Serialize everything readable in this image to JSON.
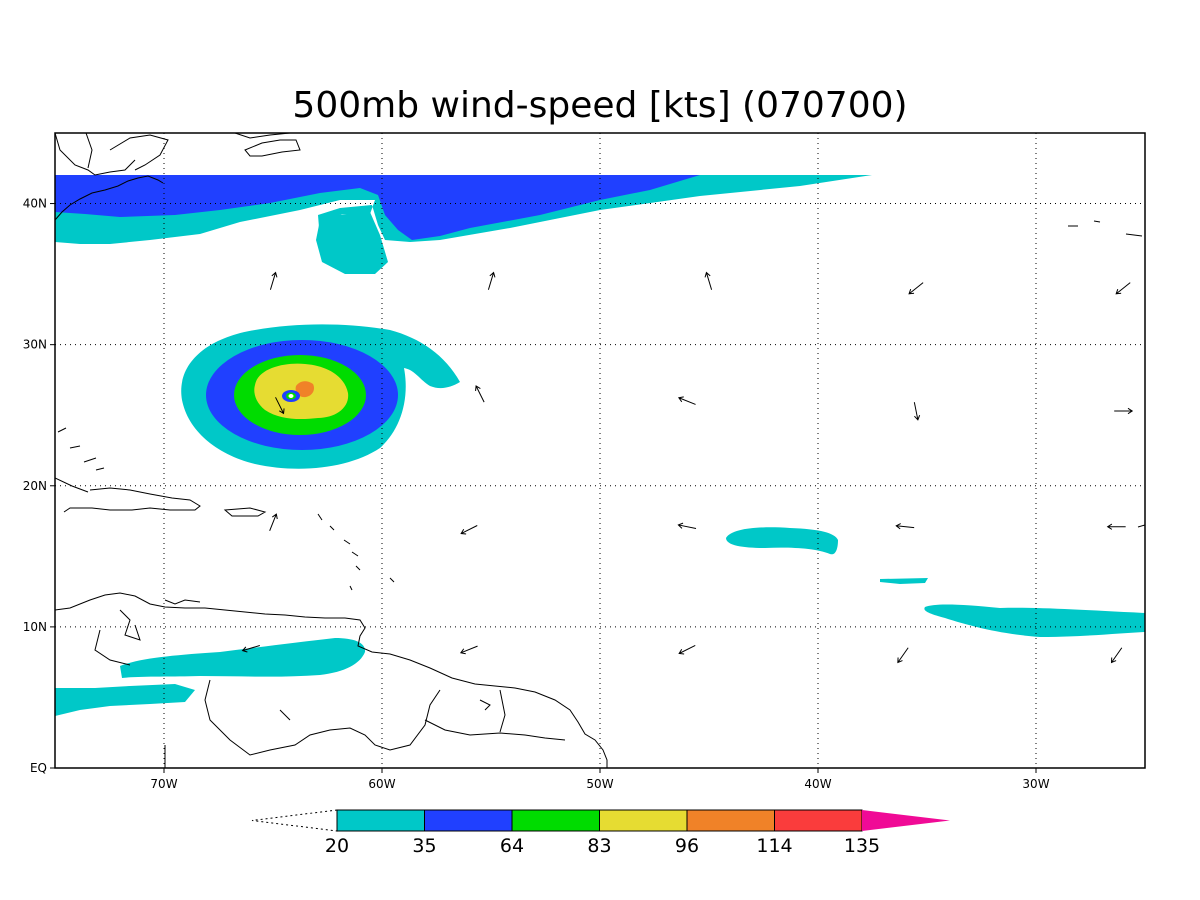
{
  "title": "500mb wind-speed [kts] (070700)",
  "map": {
    "lon_range": [
      -75,
      -25
    ],
    "lat_range": [
      0,
      45
    ],
    "lon_ticks": [
      {
        "lon": -70,
        "label": "70W"
      },
      {
        "lon": -60,
        "label": "60W"
      },
      {
        "lon": -50,
        "label": "50W"
      },
      {
        "lon": -40,
        "label": "40W"
      },
      {
        "lon": -30,
        "label": "30W"
      }
    ],
    "lat_ticks": [
      {
        "lat": 0,
        "label": "EQ"
      },
      {
        "lat": 10,
        "label": "10N"
      },
      {
        "lat": 20,
        "label": "20N"
      },
      {
        "lat": 30,
        "label": "30N"
      },
      {
        "lat": 40,
        "label": "40N"
      }
    ],
    "grid": "dotted",
    "storm_center": {
      "lon": -64.2,
      "lat": 26.4
    }
  },
  "colorbar": {
    "levels": [
      {
        "label": "20",
        "color": "#00c8c8"
      },
      {
        "label": "35",
        "color": "#2040ff"
      },
      {
        "label": "64",
        "color": "#00dc00"
      },
      {
        "label": "83",
        "color": "#e6dc32"
      },
      {
        "label": "96",
        "color": "#f08228"
      },
      {
        "label": "114",
        "color": "#fa3c3c"
      },
      {
        "label": "135",
        "color": "#f00a96"
      }
    ]
  },
  "wind_vectors": [
    {
      "lon": -65,
      "lat": 34.5,
      "dir": [
        0.3,
        1
      ]
    },
    {
      "lon": -55,
      "lat": 34.5,
      "dir": [
        0.3,
        1
      ]
    },
    {
      "lon": -45,
      "lat": 34.5,
      "dir": [
        -0.3,
        1
      ]
    },
    {
      "lon": -35.5,
      "lat": 34,
      "dir": [
        -1,
        -0.8
      ]
    },
    {
      "lon": -26,
      "lat": 34,
      "dir": [
        -1,
        -0.8
      ]
    },
    {
      "lon": -55.5,
      "lat": 26.5,
      "dir": [
        -0.5,
        1
      ]
    },
    {
      "lon": -46,
      "lat": 26,
      "dir": [
        -1,
        0.4
      ]
    },
    {
      "lon": -35.5,
      "lat": 25.3,
      "dir": [
        0.2,
        -1
      ]
    },
    {
      "lon": -26,
      "lat": 25.3,
      "dir": [
        1,
        0
      ]
    },
    {
      "lon": -64.7,
      "lat": 25.7,
      "dir": [
        0.5,
        -1
      ]
    },
    {
      "lon": -65,
      "lat": 17.4,
      "dir": [
        0.4,
        1
      ]
    },
    {
      "lon": -56,
      "lat": 16.9,
      "dir": [
        -1,
        -0.5
      ]
    },
    {
      "lon": -46,
      "lat": 17.1,
      "dir": [
        -1,
        0.2
      ]
    },
    {
      "lon": -36,
      "lat": 17.1,
      "dir": [
        -1,
        0.1
      ]
    },
    {
      "lon": -26.3,
      "lat": 17.1,
      "dir": [
        -1,
        0
      ]
    },
    {
      "lon": -66,
      "lat": 8.5,
      "dir": [
        -1,
        -0.3
      ]
    },
    {
      "lon": -56,
      "lat": 8.4,
      "dir": [
        -1,
        -0.4
      ]
    },
    {
      "lon": -46,
      "lat": 8.4,
      "dir": [
        -1,
        -0.5
      ]
    },
    {
      "lon": -36.1,
      "lat": 8.0,
      "dir": [
        -0.7,
        -1
      ]
    },
    {
      "lon": -26.3,
      "lat": 8.0,
      "dir": [
        -0.7,
        -1
      ]
    }
  ]
}
